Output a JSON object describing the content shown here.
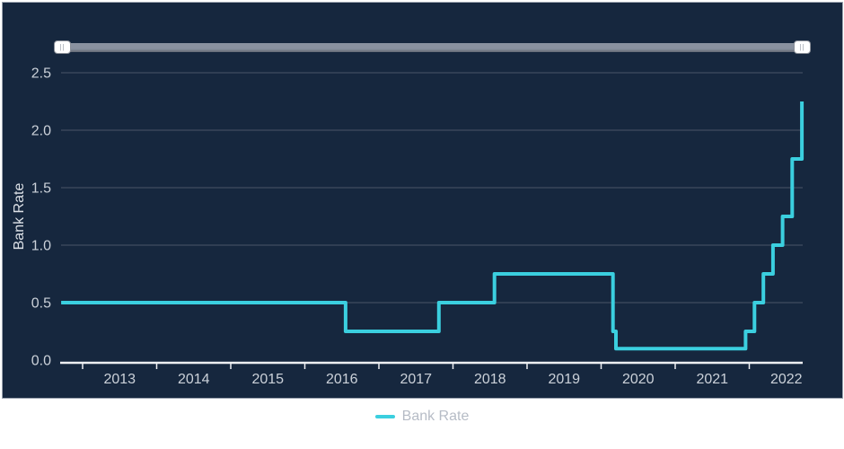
{
  "panel": {
    "background": "#16273E",
    "border_color": "#9BA3AF",
    "gridline_color": "rgba(255,255,255,0.22)",
    "axis_color": "#EDEFF2",
    "tick_label_color": "#CBD1D9"
  },
  "slider": {
    "grip_glyph": "||",
    "track_color": "#8A92A0",
    "handle_color": "#FFFFFF",
    "range_start_pct": 0,
    "range_end_pct": 100
  },
  "legend": {
    "label": "Bank Rate",
    "swatch_color": "#3BCFDF",
    "text_color": "#B6BCC6"
  },
  "chart_data": {
    "type": "line",
    "step": true,
    "title": "",
    "xlabel": "",
    "ylabel": "Bank Rate",
    "ylim": [
      0,
      2.5
    ],
    "xlim": [
      2012.71,
      2022.71
    ],
    "y_ticks": [
      0,
      0.5,
      1,
      1.5,
      2,
      2.5
    ],
    "x_ticks": [
      2013,
      2014,
      2015,
      2016,
      2017,
      2018,
      2019,
      2020,
      2021,
      2022
    ],
    "grid": "horizontal",
    "legend_position": "bottom",
    "series": [
      {
        "name": "Bank Rate",
        "color": "#3BCFDF",
        "points": [
          [
            2012.71,
            0.5
          ],
          [
            2016.55,
            0.25
          ],
          [
            2017.81,
            0.5
          ],
          [
            2018.56,
            0.75
          ],
          [
            2020.16,
            0.25
          ],
          [
            2020.2,
            0.1
          ],
          [
            2021.95,
            0.25
          ],
          [
            2022.07,
            0.5
          ],
          [
            2022.19,
            0.75
          ],
          [
            2022.32,
            1.0
          ],
          [
            2022.45,
            1.25
          ],
          [
            2022.58,
            1.75
          ],
          [
            2022.71,
            2.25
          ]
        ],
        "x_end": 2022.71
      }
    ]
  }
}
